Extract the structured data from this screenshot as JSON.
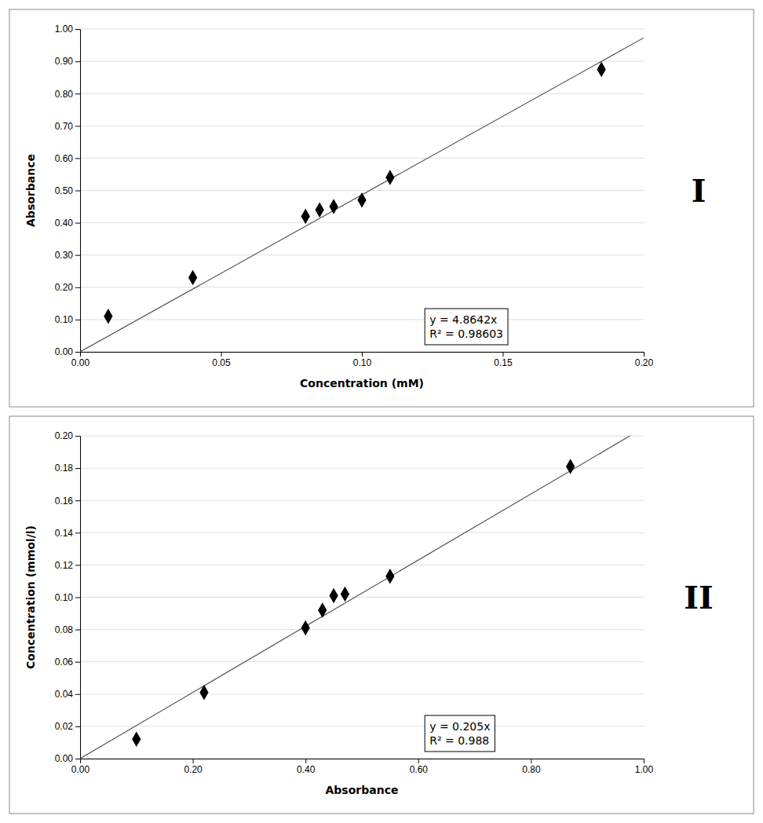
{
  "chart_data": [
    {
      "type": "scatter",
      "title": "I",
      "xlabel": "Concentration (mM)",
      "ylabel": "Absorbance",
      "x": [
        0.01,
        0.04,
        0.08,
        0.085,
        0.09,
        0.1,
        0.11,
        0.185
      ],
      "values": [
        0.11,
        0.23,
        0.42,
        0.44,
        0.45,
        0.47,
        0.54,
        0.875
      ],
      "color": "#000000",
      "marker": "diamond",
      "trendline": {
        "slope": 4.8642,
        "color": "#555555"
      },
      "annotations": [
        "y = 4.8642x",
        "R² = 0.98603"
      ],
      "xlim": [
        0.0,
        0.2
      ],
      "ylim": [
        0.0,
        1.0
      ],
      "xticks": [
        {
          "value": 0.0,
          "label": "0.00"
        },
        {
          "value": 0.05,
          "label": "0.05"
        },
        {
          "value": 0.1,
          "label": "0.10"
        },
        {
          "value": 0.15,
          "label": "0.15"
        },
        {
          "value": 0.2,
          "label": "0.20"
        }
      ],
      "yticks": [
        {
          "value": 0.0,
          "label": "0.00"
        },
        {
          "value": 0.1,
          "label": "0.10"
        },
        {
          "value": 0.2,
          "label": "0.20"
        },
        {
          "value": 0.3,
          "label": "0.30"
        },
        {
          "value": 0.4,
          "label": "0.40"
        },
        {
          "value": 0.5,
          "label": "0.50"
        },
        {
          "value": 0.6,
          "label": "0.60"
        },
        {
          "value": 0.7,
          "label": "0.70"
        },
        {
          "value": 0.8,
          "label": "0.80"
        },
        {
          "value": 0.9,
          "label": "0.90"
        },
        {
          "value": 1.0,
          "label": "1.00"
        }
      ],
      "grid": true
    },
    {
      "type": "scatter",
      "title": "II",
      "xlabel": "Absorbance",
      "ylabel": "Concentration (mmol/l)",
      "x": [
        0.1,
        0.22,
        0.4,
        0.43,
        0.45,
        0.47,
        0.55,
        0.87
      ],
      "values": [
        0.012,
        0.041,
        0.081,
        0.092,
        0.101,
        0.102,
        0.113,
        0.181
      ],
      "color": "#000000",
      "marker": "diamond",
      "trendline": {
        "slope": 0.205,
        "color": "#555555"
      },
      "annotations": [
        "y = 0.205x",
        "R² = 0.988"
      ],
      "xlim": [
        0.0,
        1.0
      ],
      "ylim": [
        0.0,
        0.2
      ],
      "xticks": [
        {
          "value": 0.0,
          "label": "0.00"
        },
        {
          "value": 0.2,
          "label": "0.20"
        },
        {
          "value": 0.4,
          "label": "0.40"
        },
        {
          "value": 0.6,
          "label": "0.60"
        },
        {
          "value": 0.8,
          "label": "0.80"
        },
        {
          "value": 1.0,
          "label": "1.00"
        }
      ],
      "yticks": [
        {
          "value": 0.0,
          "label": "0.00"
        },
        {
          "value": 0.02,
          "label": "0.02"
        },
        {
          "value": 0.04,
          "label": "0.04"
        },
        {
          "value": 0.06,
          "label": "0.06"
        },
        {
          "value": 0.08,
          "label": "0.08"
        },
        {
          "value": 0.1,
          "label": "0.10"
        },
        {
          "value": 0.12,
          "label": "0.12"
        },
        {
          "value": 0.14,
          "label": "0.14"
        },
        {
          "value": 0.16,
          "label": "0.16"
        },
        {
          "value": 0.18,
          "label": "0.18"
        },
        {
          "value": 0.2,
          "label": "0.20"
        }
      ],
      "grid": true
    }
  ]
}
